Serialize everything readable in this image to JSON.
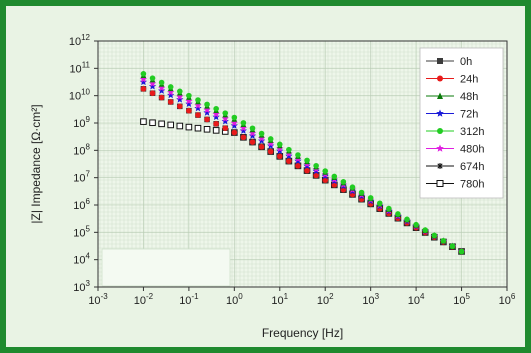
{
  "chart_data": {
    "type": "scatter",
    "xscale": "log",
    "yscale": "log",
    "xlabel": "Frequency [Hz]",
    "ylabel": "|Z| Impedance [Ω·cm²]",
    "xlim": [
      0.001,
      1000000
    ],
    "ylim": [
      1000,
      1000000000000
    ],
    "x_ticks": [
      {
        "base": "10",
        "exp": "-3"
      },
      {
        "base": "10",
        "exp": "-2"
      },
      {
        "base": "10",
        "exp": "-1"
      },
      {
        "base": "10",
        "exp": "0"
      },
      {
        "base": "10",
        "exp": "1"
      },
      {
        "base": "10",
        "exp": "2"
      },
      {
        "base": "10",
        "exp": "3"
      },
      {
        "base": "10",
        "exp": "4"
      },
      {
        "base": "10",
        "exp": "5"
      },
      {
        "base": "10",
        "exp": "6"
      }
    ],
    "y_ticks": [
      {
        "base": "10",
        "exp": "3"
      },
      {
        "base": "10",
        "exp": "4"
      },
      {
        "base": "10",
        "exp": "5"
      },
      {
        "base": "10",
        "exp": "6"
      },
      {
        "base": "10",
        "exp": "7"
      },
      {
        "base": "10",
        "exp": "8"
      },
      {
        "base": "10",
        "exp": "9"
      },
      {
        "base": "10",
        "exp": "10"
      },
      {
        "base": "10",
        "exp": "11"
      },
      {
        "base": "10",
        "exp": "12"
      }
    ],
    "grid": true,
    "legend_position": "top-right",
    "series": [
      {
        "name": "0h",
        "color": "#3c3c3c",
        "marker": "square-filled",
        "log_x": [
          -2,
          5
        ],
        "log_y_start": 10.25,
        "log_y_end": 4.3,
        "knee_log_x": 0.0,
        "slope_low": -0.8
      },
      {
        "name": "24h",
        "color": "#e81b1b",
        "marker": "circle-filled",
        "log_x": [
          -2,
          5
        ],
        "log_y_start": 10.25,
        "log_y_end": 4.3,
        "knee_log_x": 0.0,
        "slope_low": -0.8
      },
      {
        "name": "48h",
        "color": "#0a7a0a",
        "marker": "triangle-filled",
        "log_x": [
          -2,
          5
        ],
        "log_y_start": 10.75,
        "log_y_end": 4.3,
        "knee_log_x": 0.0,
        "slope_low": -0.8
      },
      {
        "name": "72h",
        "color": "#1a1ad8",
        "marker": "star",
        "log_x": [
          -2,
          5
        ],
        "log_y_start": 10.5,
        "log_y_end": 4.3,
        "knee_log_x": 0.0,
        "slope_low": -0.8
      },
      {
        "name": "312h",
        "color": "#22cc22",
        "marker": "circle-filled",
        "log_x": [
          -2,
          5
        ],
        "log_y_start": 10.8,
        "log_y_end": 4.3,
        "knee_log_x": 0.0,
        "slope_low": -0.8
      },
      {
        "name": "480h",
        "color": "#e01ee0",
        "marker": "star",
        "log_x": [
          -2,
          5
        ],
        "log_y_start": 10.6,
        "log_y_end": 4.3,
        "knee_log_x": 0.0,
        "slope_low": -0.8
      },
      {
        "name": "674h",
        "color": "#111111",
        "marker": "asterisk",
        "log_x": [
          -2,
          5
        ],
        "log_y_start": 9.05,
        "log_y_end": 4.3,
        "knee_log_x": 0.0,
        "slope_low": -0.2
      },
      {
        "name": "780h",
        "color": "#111111",
        "marker": "square-open",
        "log_x": [
          -2,
          5
        ],
        "log_y_start": 9.05,
        "log_y_end": 4.3,
        "knee_log_x": 0.0,
        "slope_low": -0.2
      }
    ]
  },
  "colors": {
    "outer_border": "#1f8a2e",
    "plot_background": "#e9f3e4",
    "grid": "#b9ccb4"
  }
}
